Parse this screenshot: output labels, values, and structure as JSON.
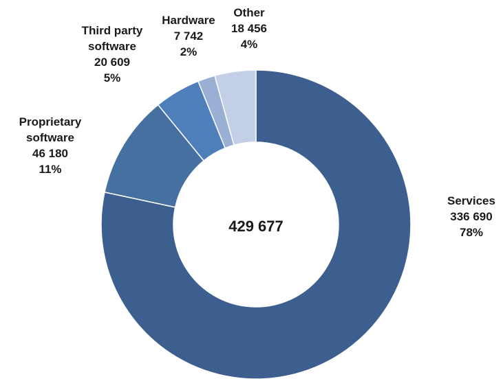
{
  "chart_data": {
    "type": "pie",
    "variant": "donut",
    "title": "",
    "center_label": "429 677",
    "slices": [
      {
        "name": "Services",
        "label_lines": [
          "Services"
        ],
        "value": 336690,
        "value_label": "336 690",
        "percent_label": "78%",
        "color": "#3c5f8f"
      },
      {
        "name": "Proprietary software",
        "label_lines": [
          "Proprietary",
          "software"
        ],
        "value": 46180,
        "value_label": "46 180",
        "percent_label": "11%",
        "color": "#45709f"
      },
      {
        "name": "Third party software",
        "label_lines": [
          "Third party",
          "software"
        ],
        "value": 20609,
        "value_label": "20 609",
        "percent_label": "5%",
        "color": "#4e7fbb"
      },
      {
        "name": "Hardware",
        "label_lines": [
          "Hardware"
        ],
        "value": 7742,
        "value_label": "7 742",
        "percent_label": "2%",
        "color": "#9aafd4"
      },
      {
        "name": "Other",
        "label_lines": [
          "Other"
        ],
        "value": 18456,
        "value_label": "18 456",
        "percent_label": "4%",
        "color": "#c3cfe6"
      }
    ],
    "start_angle": "12 o'clock",
    "direction": "clockwise",
    "legend": "none"
  }
}
